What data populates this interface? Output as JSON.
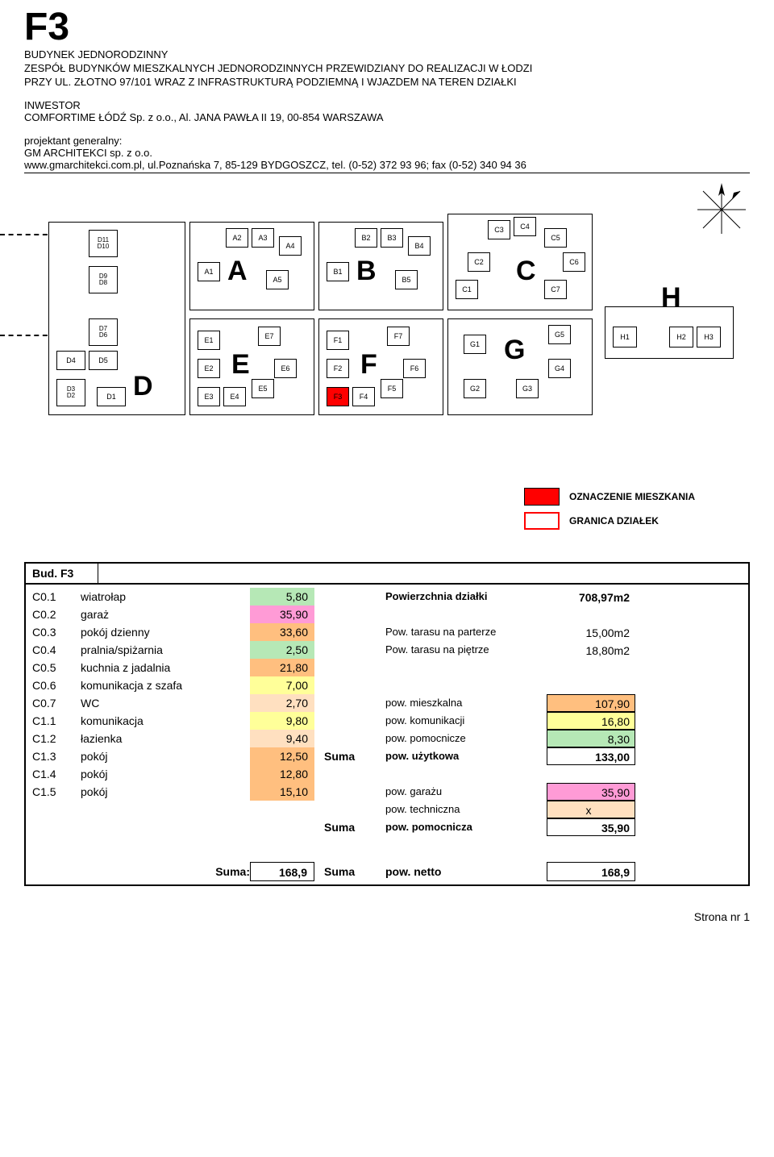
{
  "header": {
    "title": "F3",
    "line1": "BUDYNEK JEDNORODZINNY",
    "line2": "ZESPÓŁ BUDYNKÓW MIESZKALNYCH JEDNORODZINNYCH PRZEWIDZIANY DO REALIZACJI W ŁODZI",
    "line3": "PRZY UL. ZŁOTNO 97/101 WRAZ Z INFRASTRUKTURĄ PODZIEMNĄ I WJAZDEM NA TEREN DZIAŁKI",
    "investor_label": "INWESTOR",
    "investor_name": "COMFORTIME ŁÓDŹ Sp. z o.o.,   Al. JANA PAWŁA II 19,  00-854 WARSZAWA",
    "projektant_label": "projektant generalny:",
    "projektant_name": "GM ARCHITEKCI sp. z o.o.",
    "projektant_addr": "www.gmarchitekci.com.pl,   ul.Poznańska 7,  85-129  BYDGOSZCZ,   tel. (0-52) 372 93 96; fax (0-52) 340 94 36"
  },
  "colors": {
    "highlight_red": "#ff0000",
    "pink": "#ff9bd6",
    "orange": "#ffbf7f",
    "green": "#b6e8b6",
    "yellow": "#ffff99",
    "peach": "#ffe0c0",
    "white": "#ffffff"
  },
  "legend": {
    "item1_label": "OZNACZENIE MIESZKANIA",
    "item1_color": "#ff0000",
    "item2_label": "GRANICA DZIAŁEK",
    "item2_color": "#ff0000"
  },
  "siteplan": {
    "zones": [
      "A",
      "B",
      "C",
      "D",
      "E",
      "F",
      "G",
      "H"
    ],
    "highlight_unit": "F3",
    "background": "#ffffff"
  },
  "table": {
    "head": "Bud. F3",
    "rows": [
      {
        "code": "C0.1",
        "name": "wiatrołap",
        "val": "5,80",
        "color": "#b6e8b6"
      },
      {
        "code": "C0.2",
        "name": "garaż",
        "val": "35,90",
        "color": "#ff9bd6"
      },
      {
        "code": "C0.3",
        "name": "pokój dzienny",
        "val": "33,60",
        "color": "#ffbf7f"
      },
      {
        "code": "C0.4",
        "name": "pralnia/spiżarnia",
        "val": "2,50",
        "color": "#b6e8b6"
      },
      {
        "code": "C0.5",
        "name": "kuchnia z jadalnia",
        "val": "21,80",
        "color": "#ffbf7f"
      },
      {
        "code": "C0.6",
        "name": "komunikacja z szafa",
        "val": "7,00",
        "color": "#ffff99"
      },
      {
        "code": "C0.7",
        "name": "WC",
        "val": "2,70",
        "color": "#ffe0c0"
      },
      {
        "code": "C1.1",
        "name": "komunikacja",
        "val": "9,80",
        "color": "#ffff99"
      },
      {
        "code": "C1.2",
        "name": "łazienka",
        "val": "9,40",
        "color": "#ffe0c0"
      },
      {
        "code": "C1.3",
        "name": "pokój",
        "val": "12,50",
        "color": "#ffbf7f"
      },
      {
        "code": "C1.4",
        "name": "pokój",
        "val": "12,80",
        "color": "#ffbf7f"
      },
      {
        "code": "C1.5",
        "name": "pokój",
        "val": "15,10",
        "color": "#ffbf7f"
      }
    ],
    "right": [
      {
        "mid": "",
        "label": "Powierzchnia działki",
        "val": "708,97m2",
        "bold": true,
        "box": false,
        "color": ""
      },
      {
        "mid": "",
        "label": "",
        "val": "",
        "box": false
      },
      {
        "mid": "",
        "label": "Pow. tarasu na parterze",
        "val": "15,00m2",
        "box": false
      },
      {
        "mid": "",
        "label": "Pow. tarasu na piętrze",
        "val": "18,80m2",
        "box": false
      },
      {
        "mid": "",
        "label": "",
        "val": "",
        "box": false
      },
      {
        "mid": "",
        "label": "",
        "val": "",
        "box": false
      },
      {
        "mid": "",
        "label": "pow. mieszkalna",
        "val": "107,90",
        "box": true,
        "color": "#ffbf7f"
      },
      {
        "mid": "",
        "label": "pow. komunikacji",
        "val": "16,80",
        "box": true,
        "color": "#ffff99"
      },
      {
        "mid": "",
        "label": "pow. pomocnicze",
        "val": "8,30",
        "box": true,
        "color": "#b6e8b6"
      },
      {
        "mid": "Suma",
        "label": "pow. użytkowa",
        "val": "133,00",
        "box": true,
        "bold": true,
        "color": "#ffffff"
      },
      {
        "mid": "",
        "label": "",
        "val": "",
        "box": false
      },
      {
        "mid": "",
        "label": "pow. garażu",
        "val": "35,90",
        "box": true,
        "color": "#ff9bd6"
      },
      {
        "mid": "",
        "label": "pow. techniczna",
        "val": "x",
        "box": true,
        "color": "#ffe0c0",
        "center": true
      },
      {
        "mid": "Suma",
        "label": "pow. pomocnicza",
        "val": "35,90",
        "box": true,
        "bold": true,
        "color": "#ffffff"
      }
    ],
    "suma": {
      "label": "Suma:",
      "val": "168,9",
      "mid": "Suma",
      "right_label": "pow. netto",
      "right_val": "168,9"
    }
  },
  "footer": "Strona nr 1"
}
